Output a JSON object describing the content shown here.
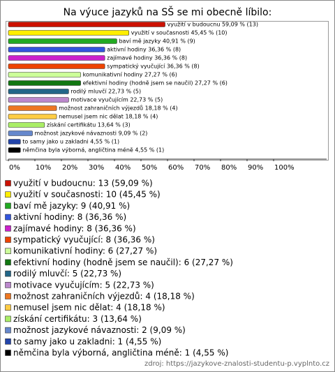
{
  "chart_data": {
    "type": "bar",
    "orientation": "horizontal",
    "title": "Na výuce jazyků na SŠ se mi obecně líbilo:",
    "categories": [
      "využití v budoucnu",
      "využití v současnosti",
      "baví mě jazyky",
      "aktivní hodiny",
      "zajímavé hodiny",
      "sympatický vyučující",
      "komunikativní hodiny",
      "efektivní hodiny (hodně jsem se naučil)",
      "rodilý mluvčí",
      "motivace vyučujícím",
      "možnost zahraničních výjezdů",
      "nemusel jsem nic dělat",
      "získání certifikátu",
      "možnost jazykové návaznosti",
      "to samy jako u zakladni",
      "němčina byla výborná, angličtina méně"
    ],
    "values": [
      59.09,
      45.45,
      40.91,
      36.36,
      36.36,
      36.36,
      27.27,
      27.27,
      22.73,
      22.73,
      18.18,
      18.18,
      13.64,
      9.09,
      4.55,
      4.55
    ],
    "value_labels": [
      "využití v budoucnu 59,09 % (13)",
      "využití v současnosti 45,45 % (10)",
      "baví mě jazyky 40,91 % (9)",
      "aktivní hodiny 36,36 % (8)",
      "zajímavé hodiny 36,36 % (8)",
      "sympatický vyučující 36,36 % (8)",
      "komunikativní hodiny 27,27 % (6)",
      "efektivní hodiny (hodně jsem se naučil) 27,27 % (6)",
      "rodilý mluvčí 22,73 % (5)",
      "motivace vyučujícím 22,73 % (5)",
      "možnost zahraničních výjezdů 18,18 % (4)",
      "nemusel jsem nic dělat 18,18 % (4)",
      "získání certifikátu 13,64 % (3)",
      "možnost jazykové návaznosti 9,09 % (2)",
      "to samy jako u zakladni 4,55 % (1)",
      "němčina byla výborná, angličtina méně 4,55 % (1)"
    ],
    "legend_labels": [
      "využití v budoucnu: 13 (59,09 %)",
      "využití v současnosti: 10 (45,45 %)",
      "baví mě jazyky: 9 (40,91 %)",
      "aktivní hodiny: 8 (36,36 %)",
      "zajímavé hodiny: 8 (36,36 %)",
      "sympatický vyučující: 8 (36,36 %)",
      "komunikativní hodiny: 6 (27,27 %)",
      "efektivní hodiny (hodně jsem se naučil): 6 (27,27 %)",
      "rodilý mluvčí: 5 (22,73 %)",
      "motivace vyučujícím: 5 (22,73 %)",
      "možnost zahraničních výjezdů: 4 (18,18 %)",
      "nemusel jsem nic dělat: 4 (18,18 %)",
      "získání certifikátu: 3 (13,64 %)",
      "možnost jazykové návaznosti: 2 (9,09 %)",
      "to samy jako u zakladni: 1 (4,55 %)",
      "němčina byla výborná, angličtina méně: 1 (4,55 %)"
    ],
    "colors": [
      "#cc1100",
      "#ffee00",
      "#22aa22",
      "#3355dd",
      "#cc22cc",
      "#ee4400",
      "#ccff99",
      "#117711",
      "#226688",
      "#bb88cc",
      "#ee7722",
      "#ffcc44",
      "#aaee66",
      "#6688cc",
      "#2244aa",
      "#000000"
    ],
    "xlim": [
      0,
      100
    ],
    "xticks": [
      {
        "value": 0,
        "label": "0%"
      },
      {
        "value": 10,
        "label": "10%"
      },
      {
        "value": 20,
        "label": "20%"
      },
      {
        "value": 30,
        "label": "30%"
      },
      {
        "value": 40,
        "label": "40%"
      },
      {
        "value": 50,
        "label": "50%"
      },
      {
        "value": 60,
        "label": "60%"
      },
      {
        "value": 70,
        "label": "70%"
      },
      {
        "value": 80,
        "label": "80%"
      },
      {
        "value": 90,
        "label": "90%"
      },
      {
        "value": 100,
        "label": "100%"
      }
    ],
    "source": "zdroj: https://jazykove-znalosti-studentu-p.vyplnto.cz"
  }
}
